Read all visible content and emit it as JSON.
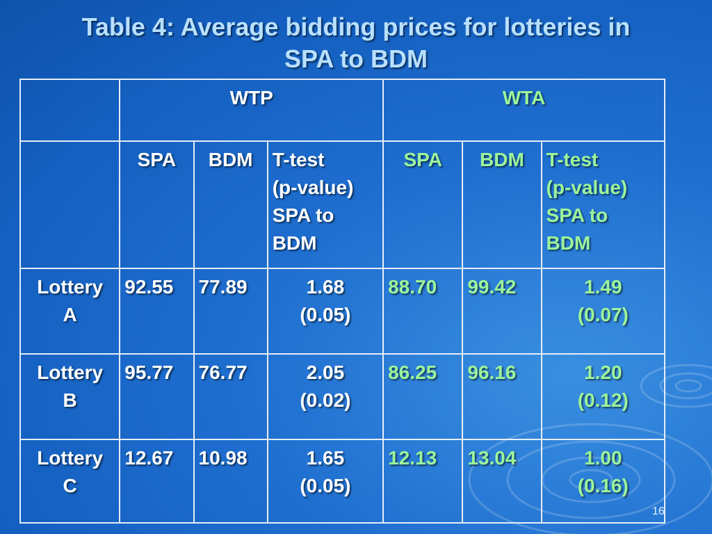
{
  "slide": {
    "title_line1": "Table 4: Average bidding prices for lotteries in",
    "title_line2": "SPA to BDM",
    "page_number": "16"
  },
  "table": {
    "group_headers": {
      "wtp": "WTP",
      "wta": "WTA"
    },
    "sub_headers": {
      "spa": "SPA",
      "bdm": "BDM",
      "ttest_line1": "T-test",
      "ttest_line2": "(p-value)",
      "ttest_line3": "SPA to",
      "ttest_line4": "BDM"
    },
    "rows": [
      {
        "label_line1": "Lottery",
        "label_line2": "A",
        "wtp_spa": "92.55",
        "wtp_bdm": "77.89",
        "wtp_t": "1.68",
        "wtp_p": "(0.05)",
        "wta_spa": "88.70",
        "wta_bdm": "99.42",
        "wta_t": "1.49",
        "wta_p": "(0.07)"
      },
      {
        "label_line1": "Lottery",
        "label_line2": "B",
        "wtp_spa": "95.77",
        "wtp_bdm": "76.77",
        "wtp_t": "2.05",
        "wtp_p": "(0.02)",
        "wta_spa": "86.25",
        "wta_bdm": "96.16",
        "wta_t": "1.20",
        "wta_p": "(0.12)"
      },
      {
        "label_line1": "Lottery",
        "label_line2": "C",
        "wtp_spa": "12.67",
        "wtp_bdm": "10.98",
        "wtp_t": "1.65",
        "wtp_p": "(0.05)",
        "wta_spa": "12.13",
        "wta_bdm": "13.04",
        "wta_t": "1.00",
        "wta_p": "(0.16)"
      }
    ]
  },
  "colors": {
    "background": "#1f6fd0",
    "title_text": "#b8e0ff",
    "wtp_text": "#ffffff",
    "wta_text": "#9cf59a",
    "grid_lines": "#e6eef8"
  }
}
